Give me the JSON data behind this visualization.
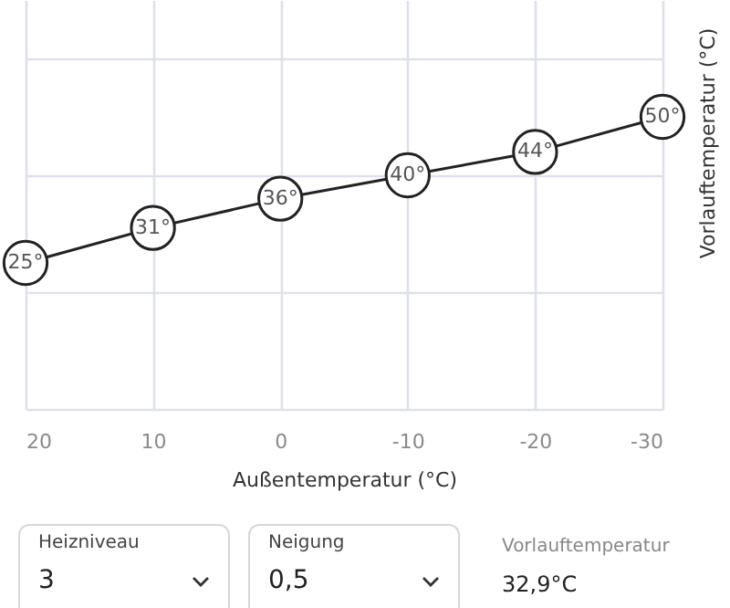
{
  "chart_data": {
    "type": "line",
    "xlabel": "Außentemperatur (°C)",
    "ylabel": "Vorlauftemperatur (°C)",
    "x": [
      20,
      10,
      0,
      -10,
      -20,
      -30
    ],
    "series": [
      {
        "color": "#222222",
        "values": [
          25,
          31,
          36,
          40,
          44,
          50
        ],
        "value_labels": [
          "25°",
          "31°",
          "36°",
          "40°",
          "44°",
          "50°"
        ]
      }
    ],
    "xlim": [
      20,
      -30
    ],
    "xticks": [
      20,
      10,
      0,
      -10,
      -20,
      -30
    ],
    "ylim": [
      0,
      70
    ],
    "yticks": [
      {
        "value": 0,
        "label": null
      },
      {
        "value": 20,
        "label": null
      },
      {
        "value": 40,
        "label": null
      },
      {
        "value": 60,
        "label": null
      }
    ],
    "tick_labels": "x",
    "grid": true,
    "marker": "circle",
    "line_style": "solid",
    "annotations": [
      "Heizniveau",
      "3",
      "Neigung",
      "0,5",
      "Vorlauftemperatur",
      "32,9°C"
    ]
  }
}
